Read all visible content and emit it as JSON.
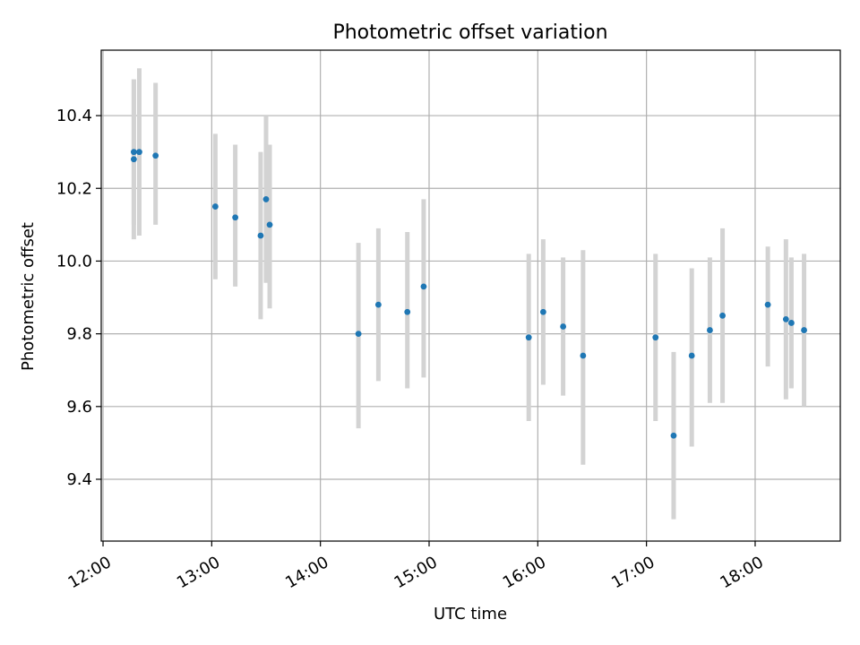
{
  "chart_data": {
    "type": "scatter",
    "title": "Photometric offset variation",
    "xlabel": "UTC time",
    "ylabel": "Photometric offset",
    "xlim": [
      "11:59",
      "18:47"
    ],
    "ylim": [
      9.23,
      10.58
    ],
    "x_ticks": [
      "12:00",
      "13:00",
      "14:00",
      "15:00",
      "16:00",
      "17:00",
      "18:00"
    ],
    "y_ticks": [
      9.4,
      9.6,
      9.8,
      10.0,
      10.2,
      10.4
    ],
    "grid": true,
    "colors": {
      "points": "#1f77b4",
      "errorbars": "#d3d3d3"
    },
    "points": [
      {
        "x": "12:17",
        "y": 10.28,
        "ylow": 10.06,
        "yhigh": 10.5
      },
      {
        "x": "12:17",
        "y": 10.3,
        "ylow": 10.1,
        "yhigh": 10.5
      },
      {
        "x": "12:20",
        "y": 10.3,
        "ylow": 10.07,
        "yhigh": 10.53
      },
      {
        "x": "12:29",
        "y": 10.29,
        "ylow": 10.1,
        "yhigh": 10.49
      },
      {
        "x": "13:02",
        "y": 10.15,
        "ylow": 9.95,
        "yhigh": 10.35
      },
      {
        "x": "13:13",
        "y": 10.12,
        "ylow": 9.93,
        "yhigh": 10.32
      },
      {
        "x": "13:27",
        "y": 10.07,
        "ylow": 9.84,
        "yhigh": 10.3
      },
      {
        "x": "13:30",
        "y": 10.17,
        "ylow": 9.94,
        "yhigh": 10.4
      },
      {
        "x": "13:32",
        "y": 10.1,
        "ylow": 9.87,
        "yhigh": 10.32
      },
      {
        "x": "14:21",
        "y": 9.8,
        "ylow": 9.54,
        "yhigh": 10.05
      },
      {
        "x": "14:32",
        "y": 9.88,
        "ylow": 9.67,
        "yhigh": 10.09
      },
      {
        "x": "14:48",
        "y": 9.86,
        "ylow": 9.65,
        "yhigh": 10.08
      },
      {
        "x": "14:57",
        "y": 9.93,
        "ylow": 9.68,
        "yhigh": 10.17
      },
      {
        "x": "15:55",
        "y": 9.79,
        "ylow": 9.56,
        "yhigh": 10.02
      },
      {
        "x": "16:03",
        "y": 9.86,
        "ylow": 9.66,
        "yhigh": 10.06
      },
      {
        "x": "16:14",
        "y": 9.82,
        "ylow": 9.63,
        "yhigh": 10.01
      },
      {
        "x": "16:25",
        "y": 9.74,
        "ylow": 9.44,
        "yhigh": 10.03
      },
      {
        "x": "17:05",
        "y": 9.79,
        "ylow": 9.56,
        "yhigh": 10.02
      },
      {
        "x": "17:15",
        "y": 9.52,
        "ylow": 9.29,
        "yhigh": 9.75
      },
      {
        "x": "17:25",
        "y": 9.74,
        "ylow": 9.49,
        "yhigh": 9.98
      },
      {
        "x": "17:35",
        "y": 9.81,
        "ylow": 9.61,
        "yhigh": 10.01
      },
      {
        "x": "17:42",
        "y": 9.85,
        "ylow": 9.61,
        "yhigh": 10.09
      },
      {
        "x": "18:07",
        "y": 9.88,
        "ylow": 9.71,
        "yhigh": 10.04
      },
      {
        "x": "18:17",
        "y": 9.84,
        "ylow": 9.62,
        "yhigh": 10.06
      },
      {
        "x": "18:20",
        "y": 9.83,
        "ylow": 9.65,
        "yhigh": 10.01
      },
      {
        "x": "18:27",
        "y": 9.81,
        "ylow": 9.6,
        "yhigh": 10.02
      }
    ]
  }
}
